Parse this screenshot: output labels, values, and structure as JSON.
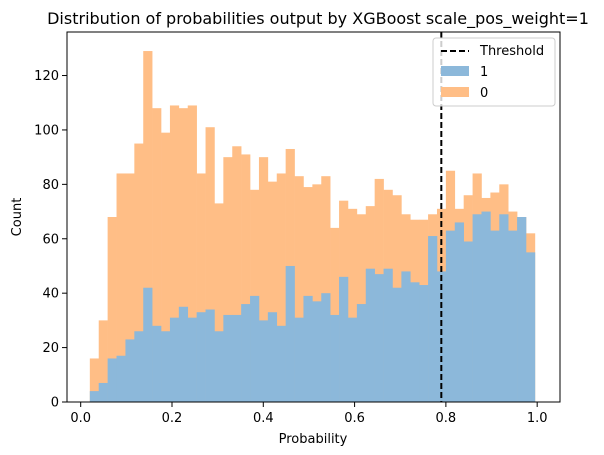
{
  "chart_data": {
    "type": "bar",
    "title": "Distribution of probabilities output by XGBoost scale_pos_weight=1",
    "xlabel": "Probability",
    "ylabel": "Count",
    "xlim": [
      -0.03,
      1.05
    ],
    "ylim": [
      0,
      136
    ],
    "x_ticks": [
      "0.0",
      "0.2",
      "0.4",
      "0.6",
      "0.8",
      "1.0"
    ],
    "y_ticks": [
      "0",
      "20",
      "40",
      "60",
      "80",
      "100",
      "120"
    ],
    "bins": {
      "start": 0.02,
      "end": 0.995,
      "count": 50
    },
    "series": [
      {
        "name": "0",
        "color": "#ffbe86",
        "values": [
          16,
          30,
          68,
          84,
          84,
          95,
          129,
          108,
          99,
          109,
          108,
          109,
          84,
          101,
          73,
          90,
          94,
          91,
          78,
          90,
          81,
          84,
          93,
          83,
          79,
          80,
          83,
          64,
          74,
          71,
          69,
          72,
          82,
          78,
          76,
          69,
          67,
          67,
          69,
          71,
          85,
          71,
          76,
          84,
          75,
          77,
          80,
          70,
          68,
          62
        ]
      },
      {
        "name": "1",
        "color": "#8cb8da",
        "values": [
          4,
          7,
          16,
          17,
          23,
          26,
          42,
          28,
          26,
          31,
          35,
          31,
          33,
          34,
          26,
          32,
          32,
          36,
          39,
          30,
          33,
          28,
          50,
          31,
          39,
          37,
          40,
          32,
          46,
          31,
          36,
          49,
          47,
          49,
          42,
          48,
          44,
          43,
          61,
          48,
          63,
          66,
          59,
          69,
          70,
          63,
          69,
          63,
          68,
          55
        ]
      }
    ],
    "threshold": {
      "name": "Threshold",
      "value": 0.79,
      "color": "#000000",
      "style": "dashed"
    },
    "legend": {
      "placement": "top-right",
      "entries": [
        "Threshold",
        "1",
        "0"
      ]
    },
    "grid": false
  }
}
